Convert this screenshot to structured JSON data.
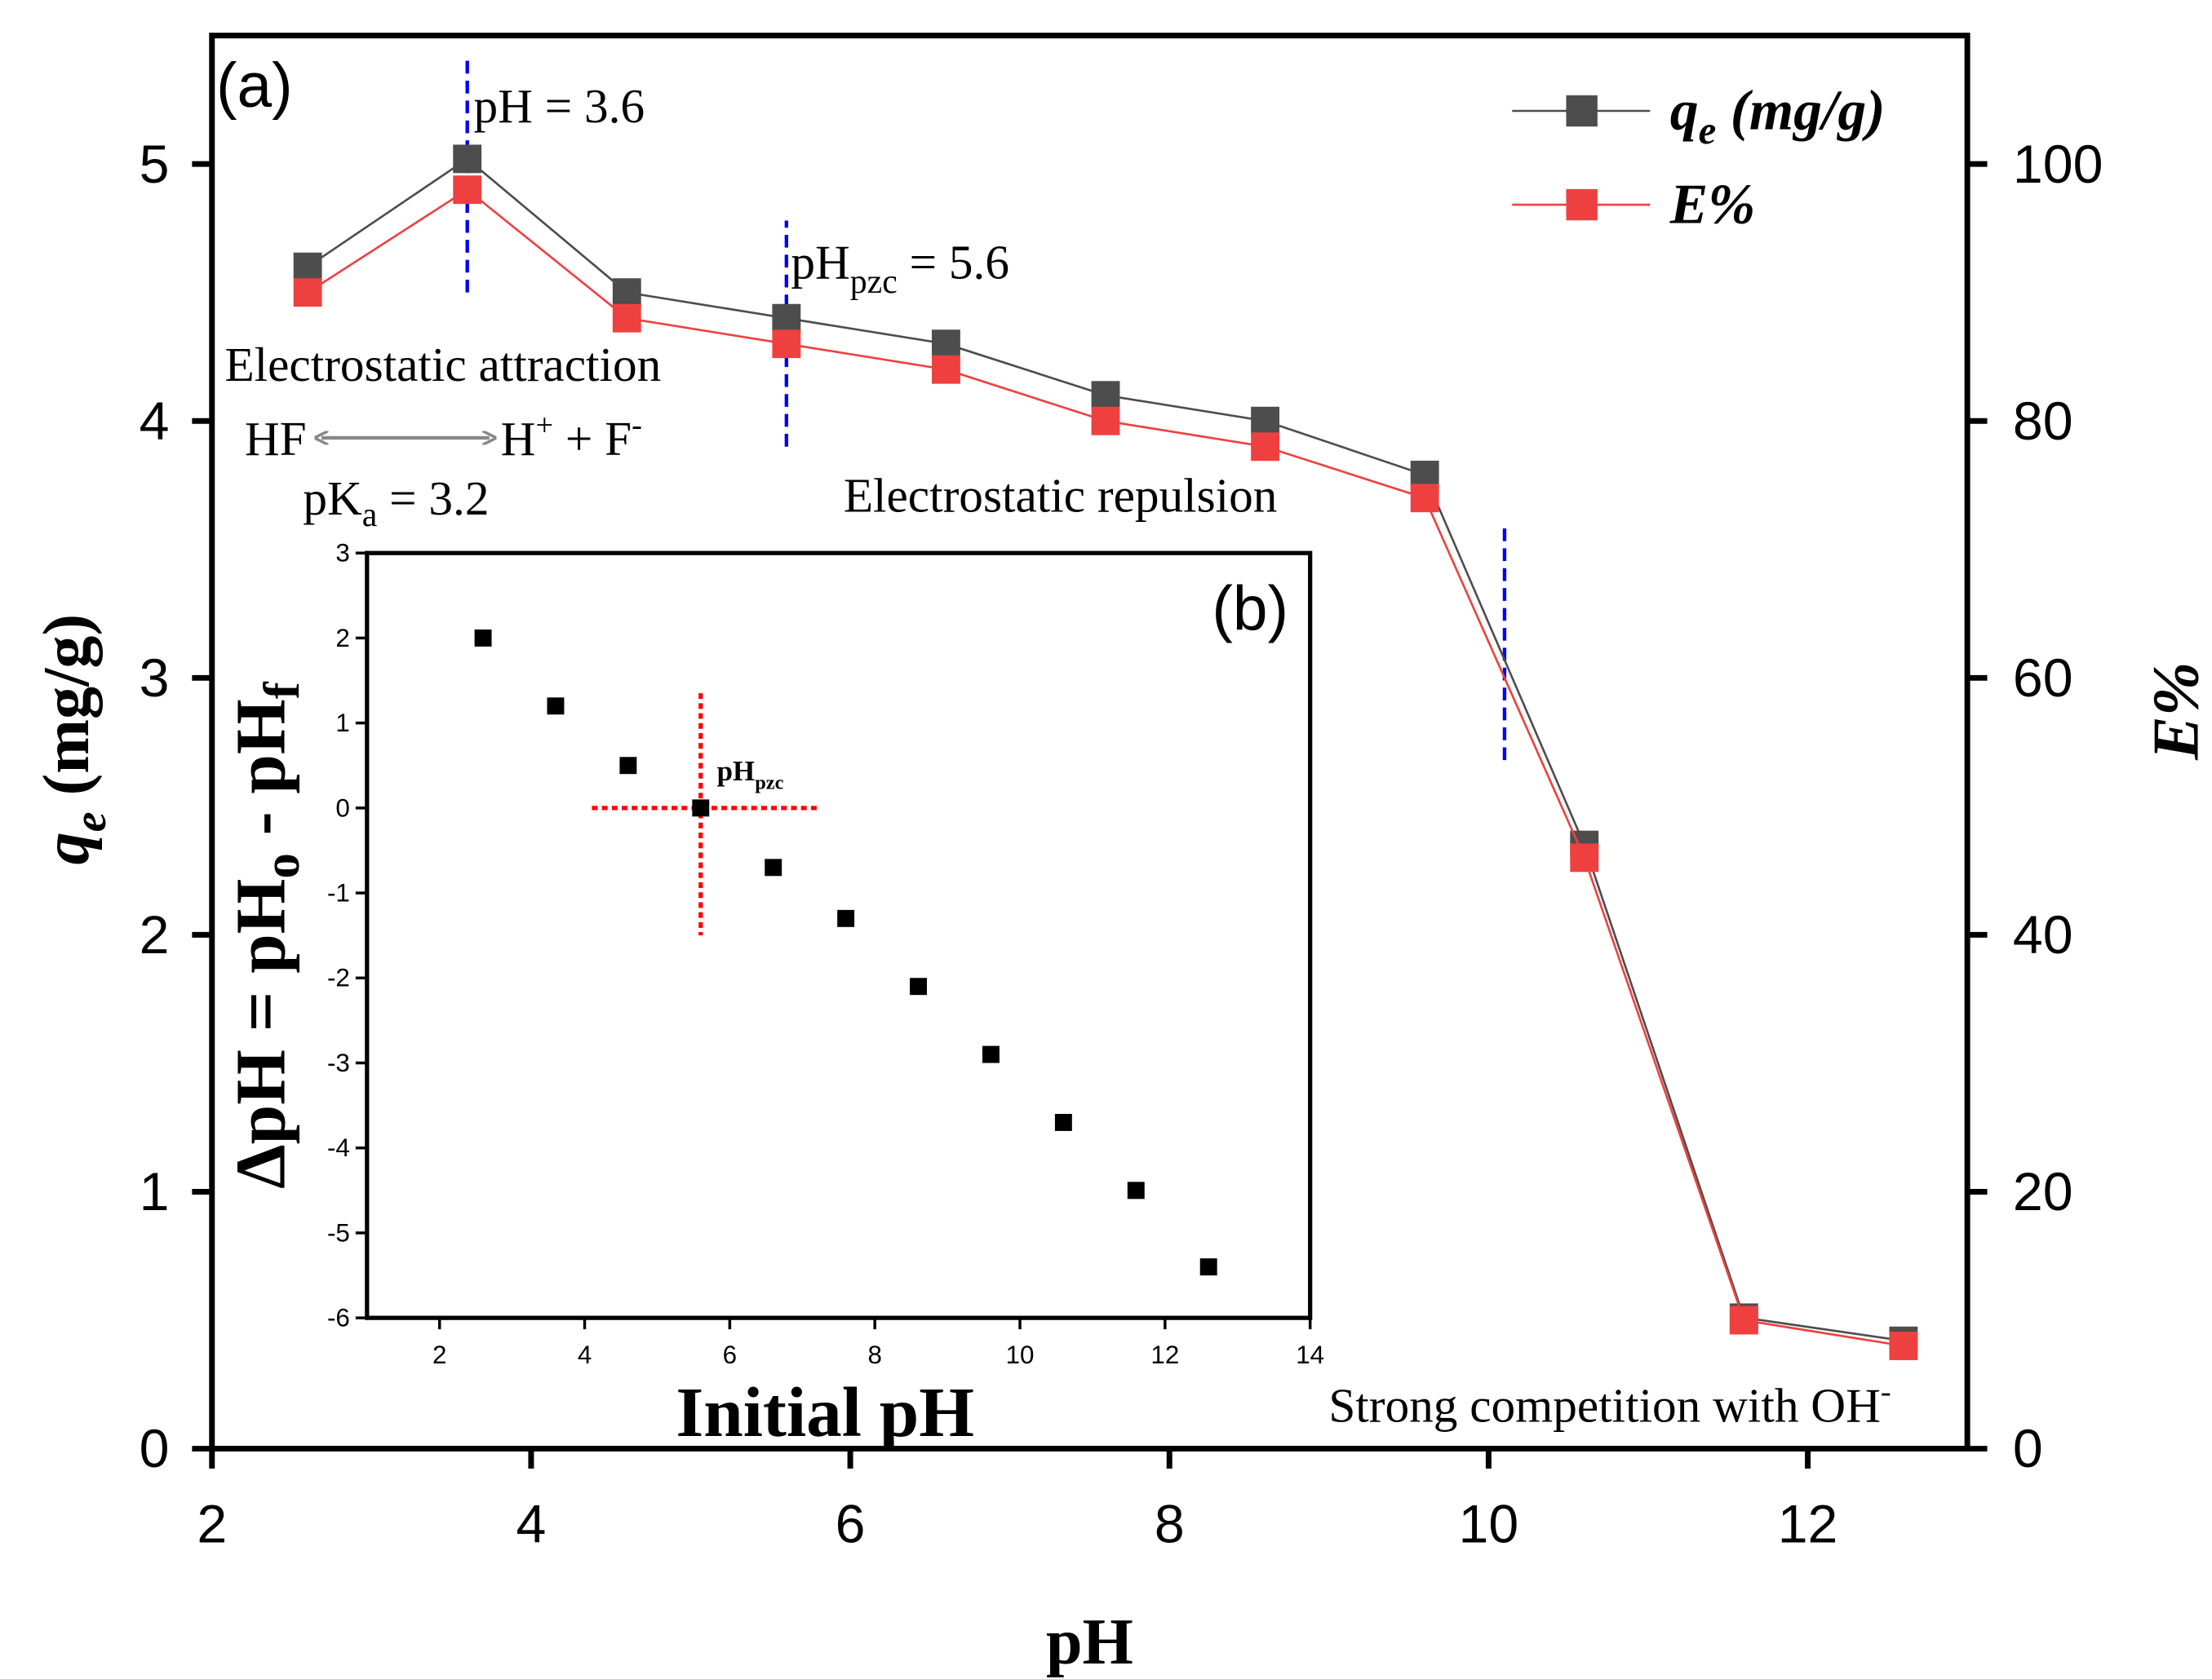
{
  "chart_data": [
    {
      "type": "line",
      "panel_label": "(a)",
      "xlabel": "pH",
      "ylabel": "q_e (mg/g)",
      "ylabel_main": "q",
      "ylabel_sub": "e",
      "ylabel_rest": " (mg/g)",
      "y2label": "E%",
      "xlim": [
        2,
        13
      ],
      "ylim": [
        0,
        5.5
      ],
      "y2lim": [
        0,
        110
      ],
      "xticks": [
        2,
        4,
        6,
        8,
        10,
        12
      ],
      "yticks": [
        0,
        1,
        2,
        3,
        4,
        5
      ],
      "y2ticks": [
        0,
        20,
        40,
        60,
        80,
        100
      ],
      "x": [
        2.6,
        3.6,
        4.6,
        5.6,
        6.6,
        7.6,
        8.6,
        9.6,
        10.6,
        11.6,
        12.6
      ],
      "series": [
        {
          "name": "q_e (mg/g)",
          "legend_main": "q",
          "legend_sub": "e",
          "legend_rest": " (mg/g)",
          "axis": "left",
          "color": "#4d4d4d",
          "values": [
            4.6,
            5.02,
            4.5,
            4.4,
            4.3,
            4.1,
            4.0,
            3.79,
            2.35,
            0.51,
            0.42
          ]
        },
        {
          "name": "E%",
          "legend_main": "E%",
          "axis": "right",
          "color": "#ef4040",
          "values": [
            90,
            98,
            88,
            86,
            84,
            80,
            78,
            74,
            46,
            10,
            8
          ]
        }
      ],
      "reference_lines": [
        {
          "x": 3.6,
          "from": 4.5,
          "to": 5.42,
          "color": "#0000ff"
        },
        {
          "x": 5.6,
          "from": 3.9,
          "to": 4.78,
          "color": "#0000ff"
        },
        {
          "x": 10.1,
          "from": 2.68,
          "to": 3.6,
          "color": "#0000ff"
        }
      ],
      "annotations": {
        "ph_36": "pH = 3.6",
        "phpzc_main": "pH",
        "phpzc_sub": "pzc",
        "phpzc_rest": " = 5.6",
        "attraction": "Electrostatic attraction",
        "repulsion": "Electrostatic repulsion",
        "competition": "Strong competition with OH",
        "competition_sup": "-",
        "hf": "HF",
        "h": "H",
        "h_sup": "+",
        "plus_f": " + F",
        "f_sup": "-",
        "pka_main": "pK",
        "pka_sub": "a",
        "pka_rest": " = 3.2"
      },
      "grid": false,
      "legend_position": "top-right"
    },
    {
      "type": "scatter",
      "panel_label": "(b)",
      "xlabel": "Initial pH",
      "ylabel": "ΔpH = pHo - pHf",
      "ylabel_a": "ΔpH = pH",
      "ylabel_b": "o",
      "ylabel_c": " - pH",
      "ylabel_d": "f",
      "xlim": [
        1,
        14
      ],
      "ylim": [
        -6,
        3
      ],
      "xticks": [
        2,
        4,
        6,
        8,
        10,
        12,
        14
      ],
      "yticks": [
        -6,
        -5,
        -4,
        -3,
        -2,
        -1,
        0,
        1,
        2,
        3
      ],
      "x": [
        2.6,
        3.6,
        4.6,
        5.6,
        6.6,
        7.6,
        8.6,
        9.6,
        10.6,
        11.6,
        12.6
      ],
      "y": [
        2,
        1.2,
        0.5,
        0,
        -0.7,
        -1.3,
        -2.1,
        -2.9,
        -3.7,
        -4.5,
        -5.4
      ],
      "color": "#000000",
      "pzc_marker": {
        "x": 5.6,
        "y": 0,
        "color": "#ff0000",
        "label_main": "pH",
        "label_sub": "pzc"
      },
      "grid": false
    }
  ]
}
